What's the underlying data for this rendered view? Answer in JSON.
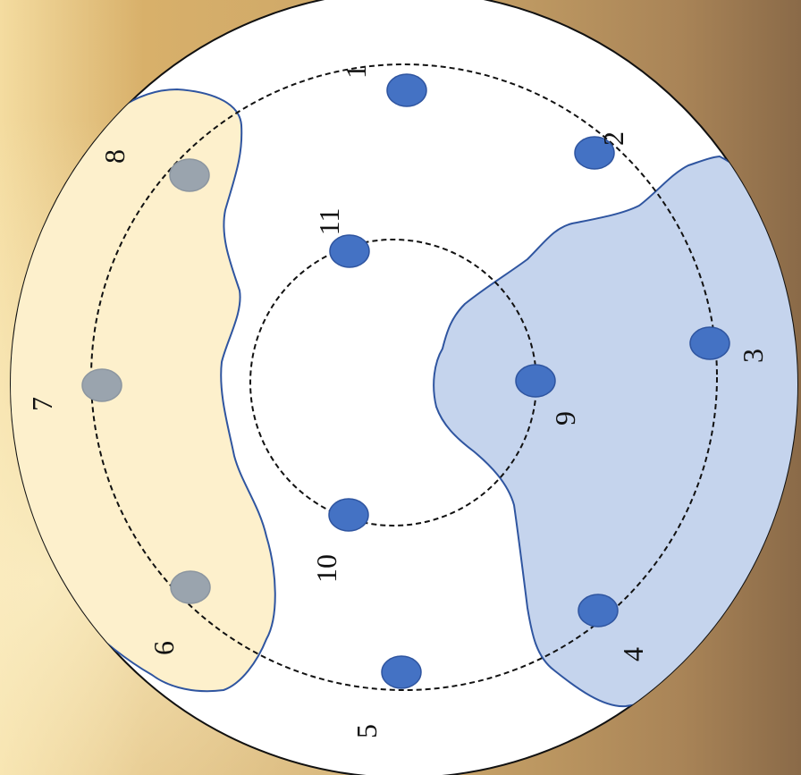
{
  "diagram": {
    "colors": {
      "disc": "#ffffff",
      "disc_outline": "#111111",
      "ring_line": "#111111",
      "zone_outline": "#2f55a0",
      "yellow_zone_fill": "#fdf0cc",
      "blue_zone_fill": "#c5d4ed",
      "blue_point": "#4472c4",
      "grey_point": "#9aa4ae",
      "grey_point_stroke": "#8c96a0",
      "blue_point_stroke": "#2f55a0"
    },
    "rings": [
      "outer-ring",
      "inner-ring"
    ],
    "zones": [
      {
        "name": "yellow-zone",
        "color_key": "yellow_zone_fill"
      },
      {
        "name": "blue-zone",
        "color_key": "blue_zone_fill"
      }
    ],
    "points": [
      {
        "label": "1",
        "color": "blue"
      },
      {
        "label": "2",
        "color": "blue"
      },
      {
        "label": "3",
        "color": "blue"
      },
      {
        "label": "4",
        "color": "blue"
      },
      {
        "label": "5",
        "color": "blue"
      },
      {
        "label": "6",
        "color": "grey"
      },
      {
        "label": "7",
        "color": "grey"
      },
      {
        "label": "8",
        "color": "grey"
      },
      {
        "label": "9",
        "color": "blue"
      },
      {
        "label": "10",
        "color": "blue"
      },
      {
        "label": "11",
        "color": "blue"
      }
    ]
  }
}
